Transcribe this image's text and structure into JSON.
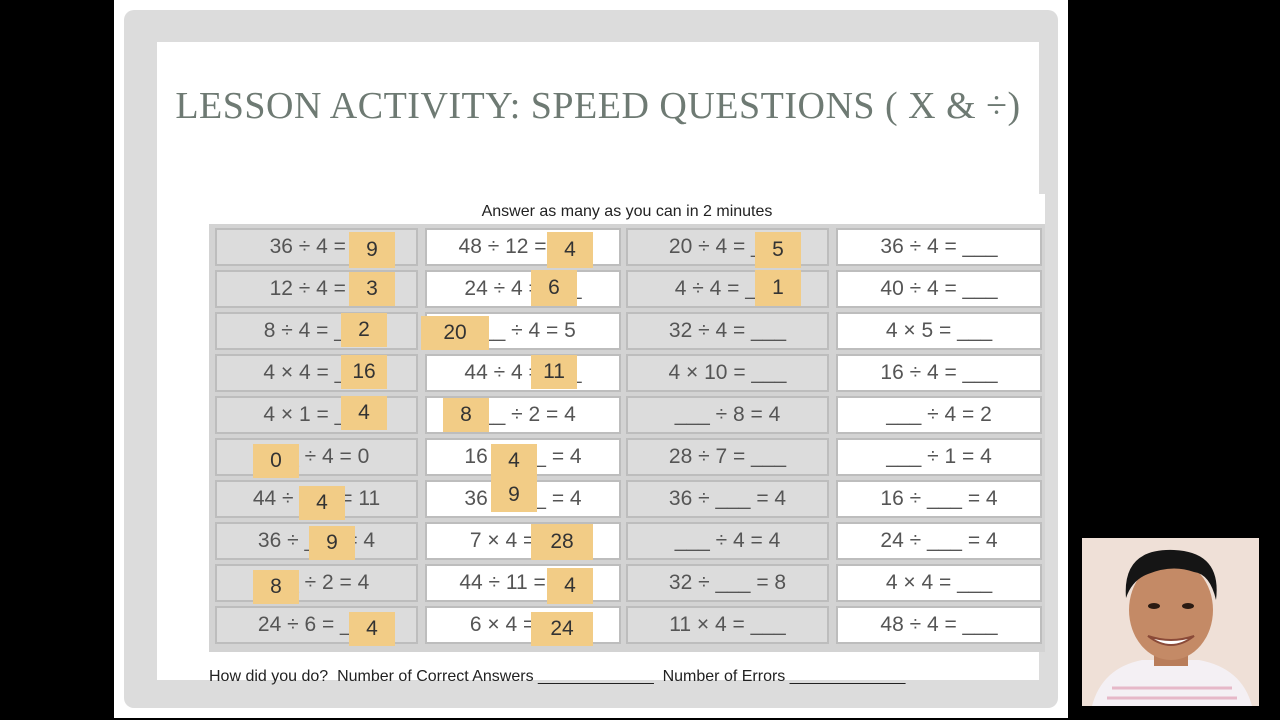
{
  "slide": {
    "title": "LESSON ACTIVITY: SPEED QUESTIONS ( X & ÷)",
    "instruction": "Answer as many as you can in 2 minutes",
    "footer": "How did you do?  Number of Correct Answers _____________  Number of Errors _____________"
  },
  "worksheet": {
    "columns": [
      [
        "36 ÷ 4 = _",
        "12 ÷ 4 = _",
        "8 ÷ 4 = ___",
        "4 × 4 = ___",
        "4 × 1 = ___",
        "___ ÷ 4 = 0",
        "44 ÷ ___ = 11",
        "36 ÷ ___ = 4",
        "___ ÷ 2 = 4",
        "24 ÷ 6 = ___"
      ],
      [
        "48 ÷ 12 = ___",
        "24 ÷ 4 = ___",
        "___ ÷ 4 = 5",
        "44 ÷ 4 = ___",
        "___ ÷ 2 = 4",
        "16 ÷ ___ = 4",
        "36 ÷ ___ = 4",
        "7 × 4 = ___",
        "44 ÷ 11 = ___",
        "6 × 4 = ___"
      ],
      [
        "20 ÷ 4 = ___",
        "4 ÷ 4 = ___",
        "32 ÷ 4 = ___",
        "4 × 10 = ___",
        "___ ÷ 8 = 4",
        "28 ÷ 7 = ___",
        "36 ÷ ___ = 4",
        "___ ÷ 4 = 4",
        "32 ÷ ___ = 8",
        "11 × 4 = ___"
      ],
      [
        "36 ÷ 4 = ___",
        "40 ÷ 4 = ___",
        "4 × 5 = ___",
        "16 ÷ 4 = ___",
        "___ ÷ 4 = 2",
        "___ ÷ 1 = 4",
        "16 ÷ ___ = 4",
        "24 ÷ ___ = 4",
        "4 × 4 = ___",
        "48 ÷ 4 = ___"
      ]
    ],
    "answers": [
      {
        "col": 0,
        "row": 0,
        "value": "9"
      },
      {
        "col": 0,
        "row": 1,
        "value": "3"
      },
      {
        "col": 0,
        "row": 2,
        "value": "2"
      },
      {
        "col": 0,
        "row": 3,
        "value": "16"
      },
      {
        "col": 0,
        "row": 4,
        "value": "4"
      },
      {
        "col": 0,
        "row": 5,
        "value": "0"
      },
      {
        "col": 0,
        "row": 6,
        "value": "4"
      },
      {
        "col": 0,
        "row": 7,
        "value": "9"
      },
      {
        "col": 0,
        "row": 8,
        "value": "8"
      },
      {
        "col": 0,
        "row": 9,
        "value": "4"
      },
      {
        "col": 1,
        "row": 0,
        "value": "4"
      },
      {
        "col": 1,
        "row": 1,
        "value": "6"
      },
      {
        "col": 1,
        "row": 2,
        "value": "20"
      },
      {
        "col": 1,
        "row": 3,
        "value": "11"
      },
      {
        "col": 1,
        "row": 4,
        "value": "8"
      },
      {
        "col": 1,
        "row": 5,
        "value": "4"
      },
      {
        "col": 1,
        "row": 6,
        "value": "9"
      },
      {
        "col": 1,
        "row": 7,
        "value": "28"
      },
      {
        "col": 1,
        "row": 8,
        "value": "4"
      },
      {
        "col": 1,
        "row": 9,
        "value": "24"
      },
      {
        "col": 2,
        "row": 0,
        "value": "5"
      },
      {
        "col": 2,
        "row": 1,
        "value": "1"
      }
    ]
  },
  "webcam": {
    "icon": "presenter-avatar-icon"
  }
}
